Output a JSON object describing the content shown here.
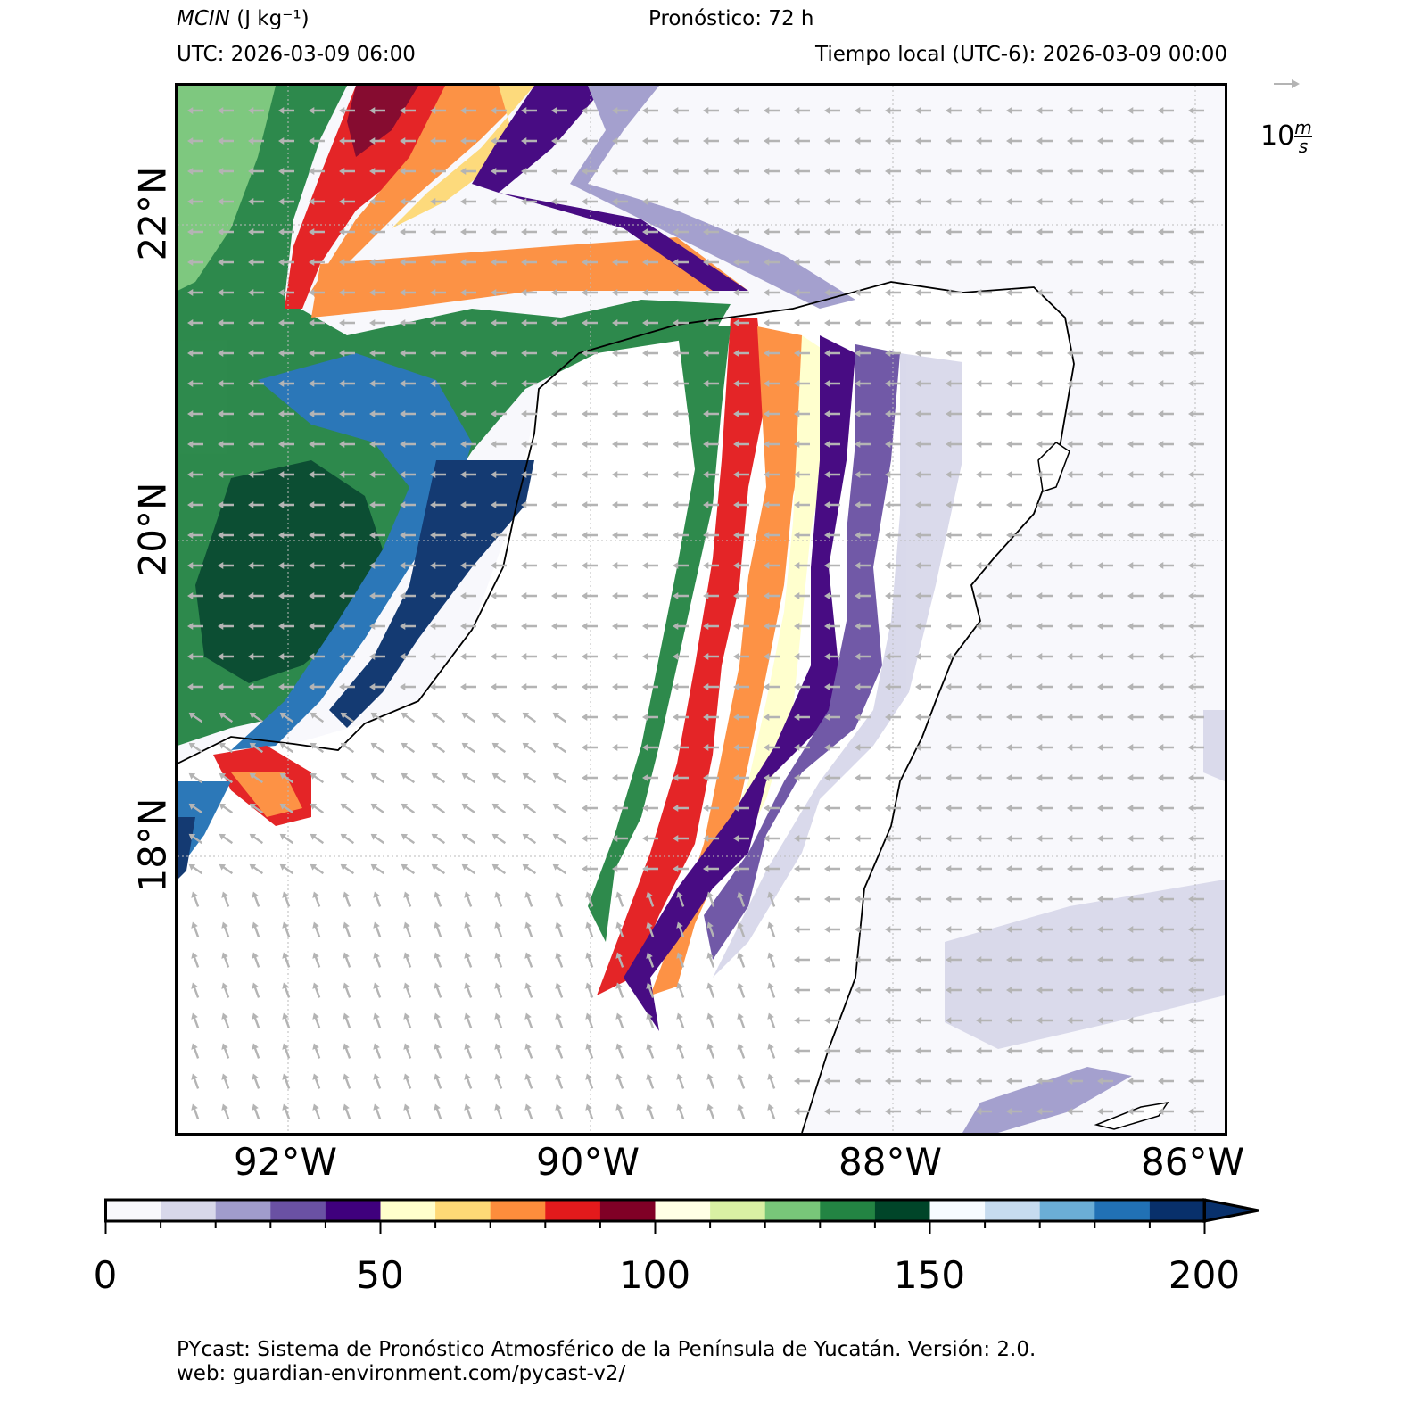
{
  "header": {
    "variable_title": "MCIN",
    "variable_units": "(J kg⁻¹)",
    "forecast": "Pronóstico: 72 h",
    "utc": "UTC:  2026-03-09 06:00",
    "local_time": "Tiempo local (UTC-6): 2026-03-09 00:00"
  },
  "map": {
    "lat_labels": [
      "22°N",
      "20°N",
      "18°N"
    ],
    "lon_labels": [
      "92°W",
      "90°W",
      "88°W",
      "86°W"
    ],
    "colors": {
      "land": "#ffffff",
      "sea": "#f8f8fc",
      "coastline": "#000000",
      "grid": "#bbbbbb",
      "wind_arrows": "#b4b4b4"
    }
  },
  "wind_key": {
    "label_value": "10",
    "label_unit_num": "m",
    "label_unit_den": "s"
  },
  "colorbar": {
    "ticks": [
      "0",
      "50",
      "100",
      "150",
      "200"
    ],
    "min": 0,
    "max": 200,
    "step": 10,
    "extend": "max",
    "colors": [
      "#f8f8fc",
      "#d8d8ea",
      "#a09ccc",
      "#6a51a3",
      "#3f007d",
      "#ffffcc",
      "#fed976",
      "#fd8d3c",
      "#e31a1c",
      "#800026",
      "#ffffe5",
      "#d9f0a3",
      "#78c679",
      "#238443",
      "#004529",
      "#f7fbff",
      "#c6dbef",
      "#6baed6",
      "#2171b5",
      "#08306b"
    ]
  },
  "footer": {
    "line1": "PYcast: Sistema de Pronóstico Atmosférico de la Península de Yucatán. Versión: 2.0.",
    "line2": "web: guardian-environment.com/pycast-v2/"
  }
}
